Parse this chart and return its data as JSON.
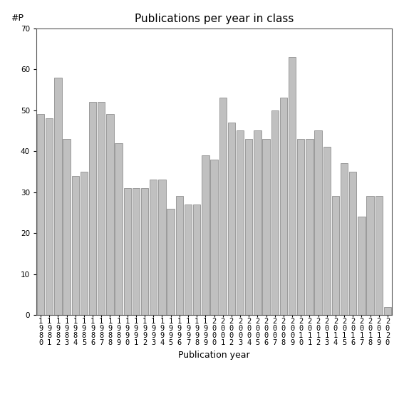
{
  "title": "Publications per year in class",
  "xlabel": "Publication year",
  "ylabel": "#P",
  "years": [
    "1980",
    "1981",
    "1982",
    "1983",
    "1984",
    "1985",
    "1986",
    "1987",
    "1988",
    "1989",
    "1990",
    "1991",
    "1992",
    "1993",
    "1994",
    "1995",
    "1996",
    "1997",
    "1998",
    "1999",
    "2000",
    "2001",
    "2002",
    "2003",
    "2004",
    "2005",
    "2006",
    "2007",
    "2008",
    "2009",
    "2010",
    "2011",
    "2012",
    "2013",
    "2014",
    "2015",
    "2016",
    "2017",
    "2018",
    "2019",
    "2020"
  ],
  "values": [
    49,
    48,
    58,
    43,
    34,
    35,
    52,
    52,
    49,
    42,
    31,
    31,
    31,
    33,
    33,
    26,
    29,
    27,
    27,
    39,
    38,
    53,
    47,
    45,
    43,
    45,
    43,
    50,
    53,
    63,
    43,
    43,
    45,
    41,
    29,
    37,
    35,
    24,
    29,
    29,
    2
  ],
  "bar_color": "#c0c0c0",
  "bar_edge_color": "#808080",
  "ylim": [
    0,
    70
  ],
  "yticks": [
    0,
    10,
    20,
    30,
    40,
    50,
    60,
    70
  ],
  "background_color": "#ffffff",
  "title_fontsize": 11,
  "axis_label_fontsize": 9,
  "tick_fontsize": 7.5
}
